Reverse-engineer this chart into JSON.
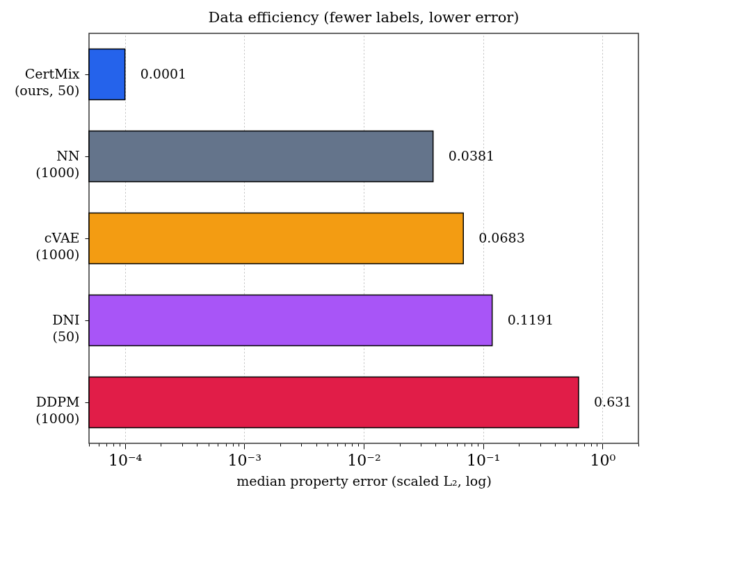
{
  "chart_data": {
    "type": "bar",
    "orientation": "horizontal",
    "title": "Data efficiency  (fewer labels, lower error)",
    "xlabel": "median property error (scaled L₂, log)",
    "categories": [
      "CertMix\n(ours, 50)",
      "NN\n(1000)",
      "cVAE\n(1000)",
      "DNI\n(50)",
      "DDPM\n(1000)"
    ],
    "values": [
      0.0001,
      0.0381,
      0.0683,
      0.1191,
      0.631
    ],
    "colors": [
      "#2563eb",
      "#64748b",
      "#f39c12",
      "#a855f7",
      "#e11d48"
    ],
    "data_labels": true,
    "log": "x",
    "grid": "x",
    "xlim": [
      5e-05,
      2
    ],
    "xticks": [
      {
        "value": 5e-05,
        "label": null
      },
      {
        "value": 6e-05,
        "label": null
      },
      {
        "value": 7e-05,
        "label": null
      },
      {
        "value": 8e-05,
        "label": null
      },
      {
        "value": 9e-05,
        "label": null
      },
      {
        "value": 0.0001,
        "label": "10⁻⁴"
      },
      {
        "value": 0.0002,
        "label": null
      },
      {
        "value": 0.0003,
        "label": null
      },
      {
        "value": 0.0004,
        "label": null
      },
      {
        "value": 0.0005,
        "label": null
      },
      {
        "value": 0.0006,
        "label": null
      },
      {
        "value": 0.0007,
        "label": null
      },
      {
        "value": 0.0008,
        "label": null
      },
      {
        "value": 0.0009,
        "label": null
      },
      {
        "value": 0.001,
        "label": "10⁻³"
      },
      {
        "value": 0.002,
        "label": null
      },
      {
        "value": 0.003,
        "label": null
      },
      {
        "value": 0.004,
        "label": null
      },
      {
        "value": 0.005,
        "label": null
      },
      {
        "value": 0.006,
        "label": null
      },
      {
        "value": 0.007,
        "label": null
      },
      {
        "value": 0.008,
        "label": null
      },
      {
        "value": 0.009,
        "label": null
      },
      {
        "value": 0.01,
        "label": "10⁻²"
      },
      {
        "value": 0.02,
        "label": null
      },
      {
        "value": 0.03,
        "label": null
      },
      {
        "value": 0.04,
        "label": null
      },
      {
        "value": 0.05,
        "label": null
      },
      {
        "value": 0.06,
        "label": null
      },
      {
        "value": 0.07,
        "label": null
      },
      {
        "value": 0.08,
        "label": null
      },
      {
        "value": 0.09,
        "label": null
      },
      {
        "value": 0.1,
        "label": "10⁻¹"
      },
      {
        "value": 0.2,
        "label": null
      },
      {
        "value": 0.3,
        "label": null
      },
      {
        "value": 0.4,
        "label": null
      },
      {
        "value": 0.5,
        "label": null
      },
      {
        "value": 0.6,
        "label": null
      },
      {
        "value": 0.7,
        "label": null
      },
      {
        "value": 0.8,
        "label": null
      },
      {
        "value": 0.9,
        "label": null
      },
      {
        "value": 1,
        "label": "10⁰"
      },
      {
        "value": 2,
        "label": null
      }
    ]
  }
}
